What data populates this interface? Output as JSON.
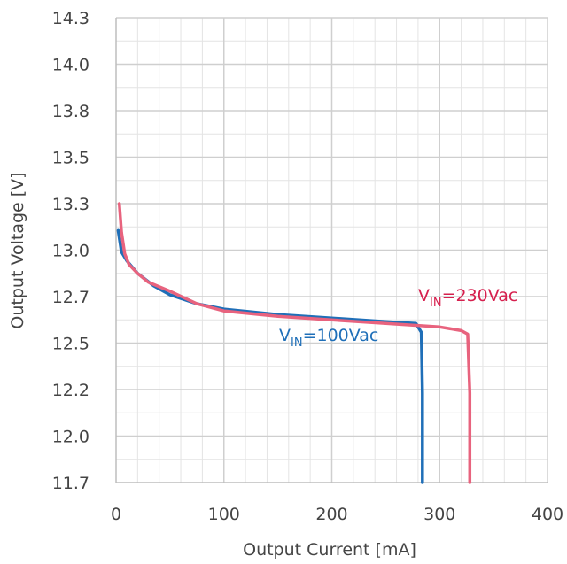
{
  "chart_data": {
    "type": "line",
    "xlabel": "Output Current [mA]",
    "ylabel": "Output Voltage [V]",
    "xlim": [
      0,
      400
    ],
    "ylim": [
      11.7,
      14.3
    ],
    "x_ticks": [
      0,
      100,
      200,
      300,
      400
    ],
    "x_tick_labels": [
      "0",
      "100",
      "200",
      "300",
      "400"
    ],
    "y_ticks": [
      11.7,
      11.96,
      12.22,
      12.48,
      12.74,
      13.0,
      13.26,
      13.52,
      13.78,
      14.04,
      14.3
    ],
    "y_tick_labels": [
      "11.7",
      "12.0",
      "12.2",
      "12.5",
      "12.7",
      "13.0",
      "13.3",
      "13.5",
      "13.8",
      "14.0",
      "14.3"
    ],
    "grid": true,
    "series": [
      {
        "label_v": "V",
        "label_sub": "IN",
        "label_rest": "=100Vac",
        "color": "#1f6fb8",
        "x": [
          2,
          5,
          10,
          20,
          35,
          50,
          75,
          100,
          150,
          200,
          250,
          278,
          280,
          283,
          284,
          284
        ],
        "y": [
          13.11,
          12.99,
          12.94,
          12.87,
          12.8,
          12.75,
          12.7,
          12.67,
          12.64,
          12.62,
          12.6,
          12.59,
          12.57,
          12.54,
          12.2,
          11.7
        ]
      },
      {
        "label_v": "V",
        "label_sub": "IN",
        "label_rest": "=230Vac",
        "color": "#e8637e",
        "x": [
          3,
          5,
          8,
          12,
          20,
          30,
          50,
          75,
          100,
          150,
          200,
          250,
          300,
          320,
          326,
          328,
          328
        ],
        "y": [
          13.26,
          13.1,
          12.98,
          12.92,
          12.87,
          12.82,
          12.77,
          12.7,
          12.66,
          12.63,
          12.61,
          12.59,
          12.57,
          12.55,
          12.53,
          12.2,
          11.7
        ]
      }
    ]
  }
}
